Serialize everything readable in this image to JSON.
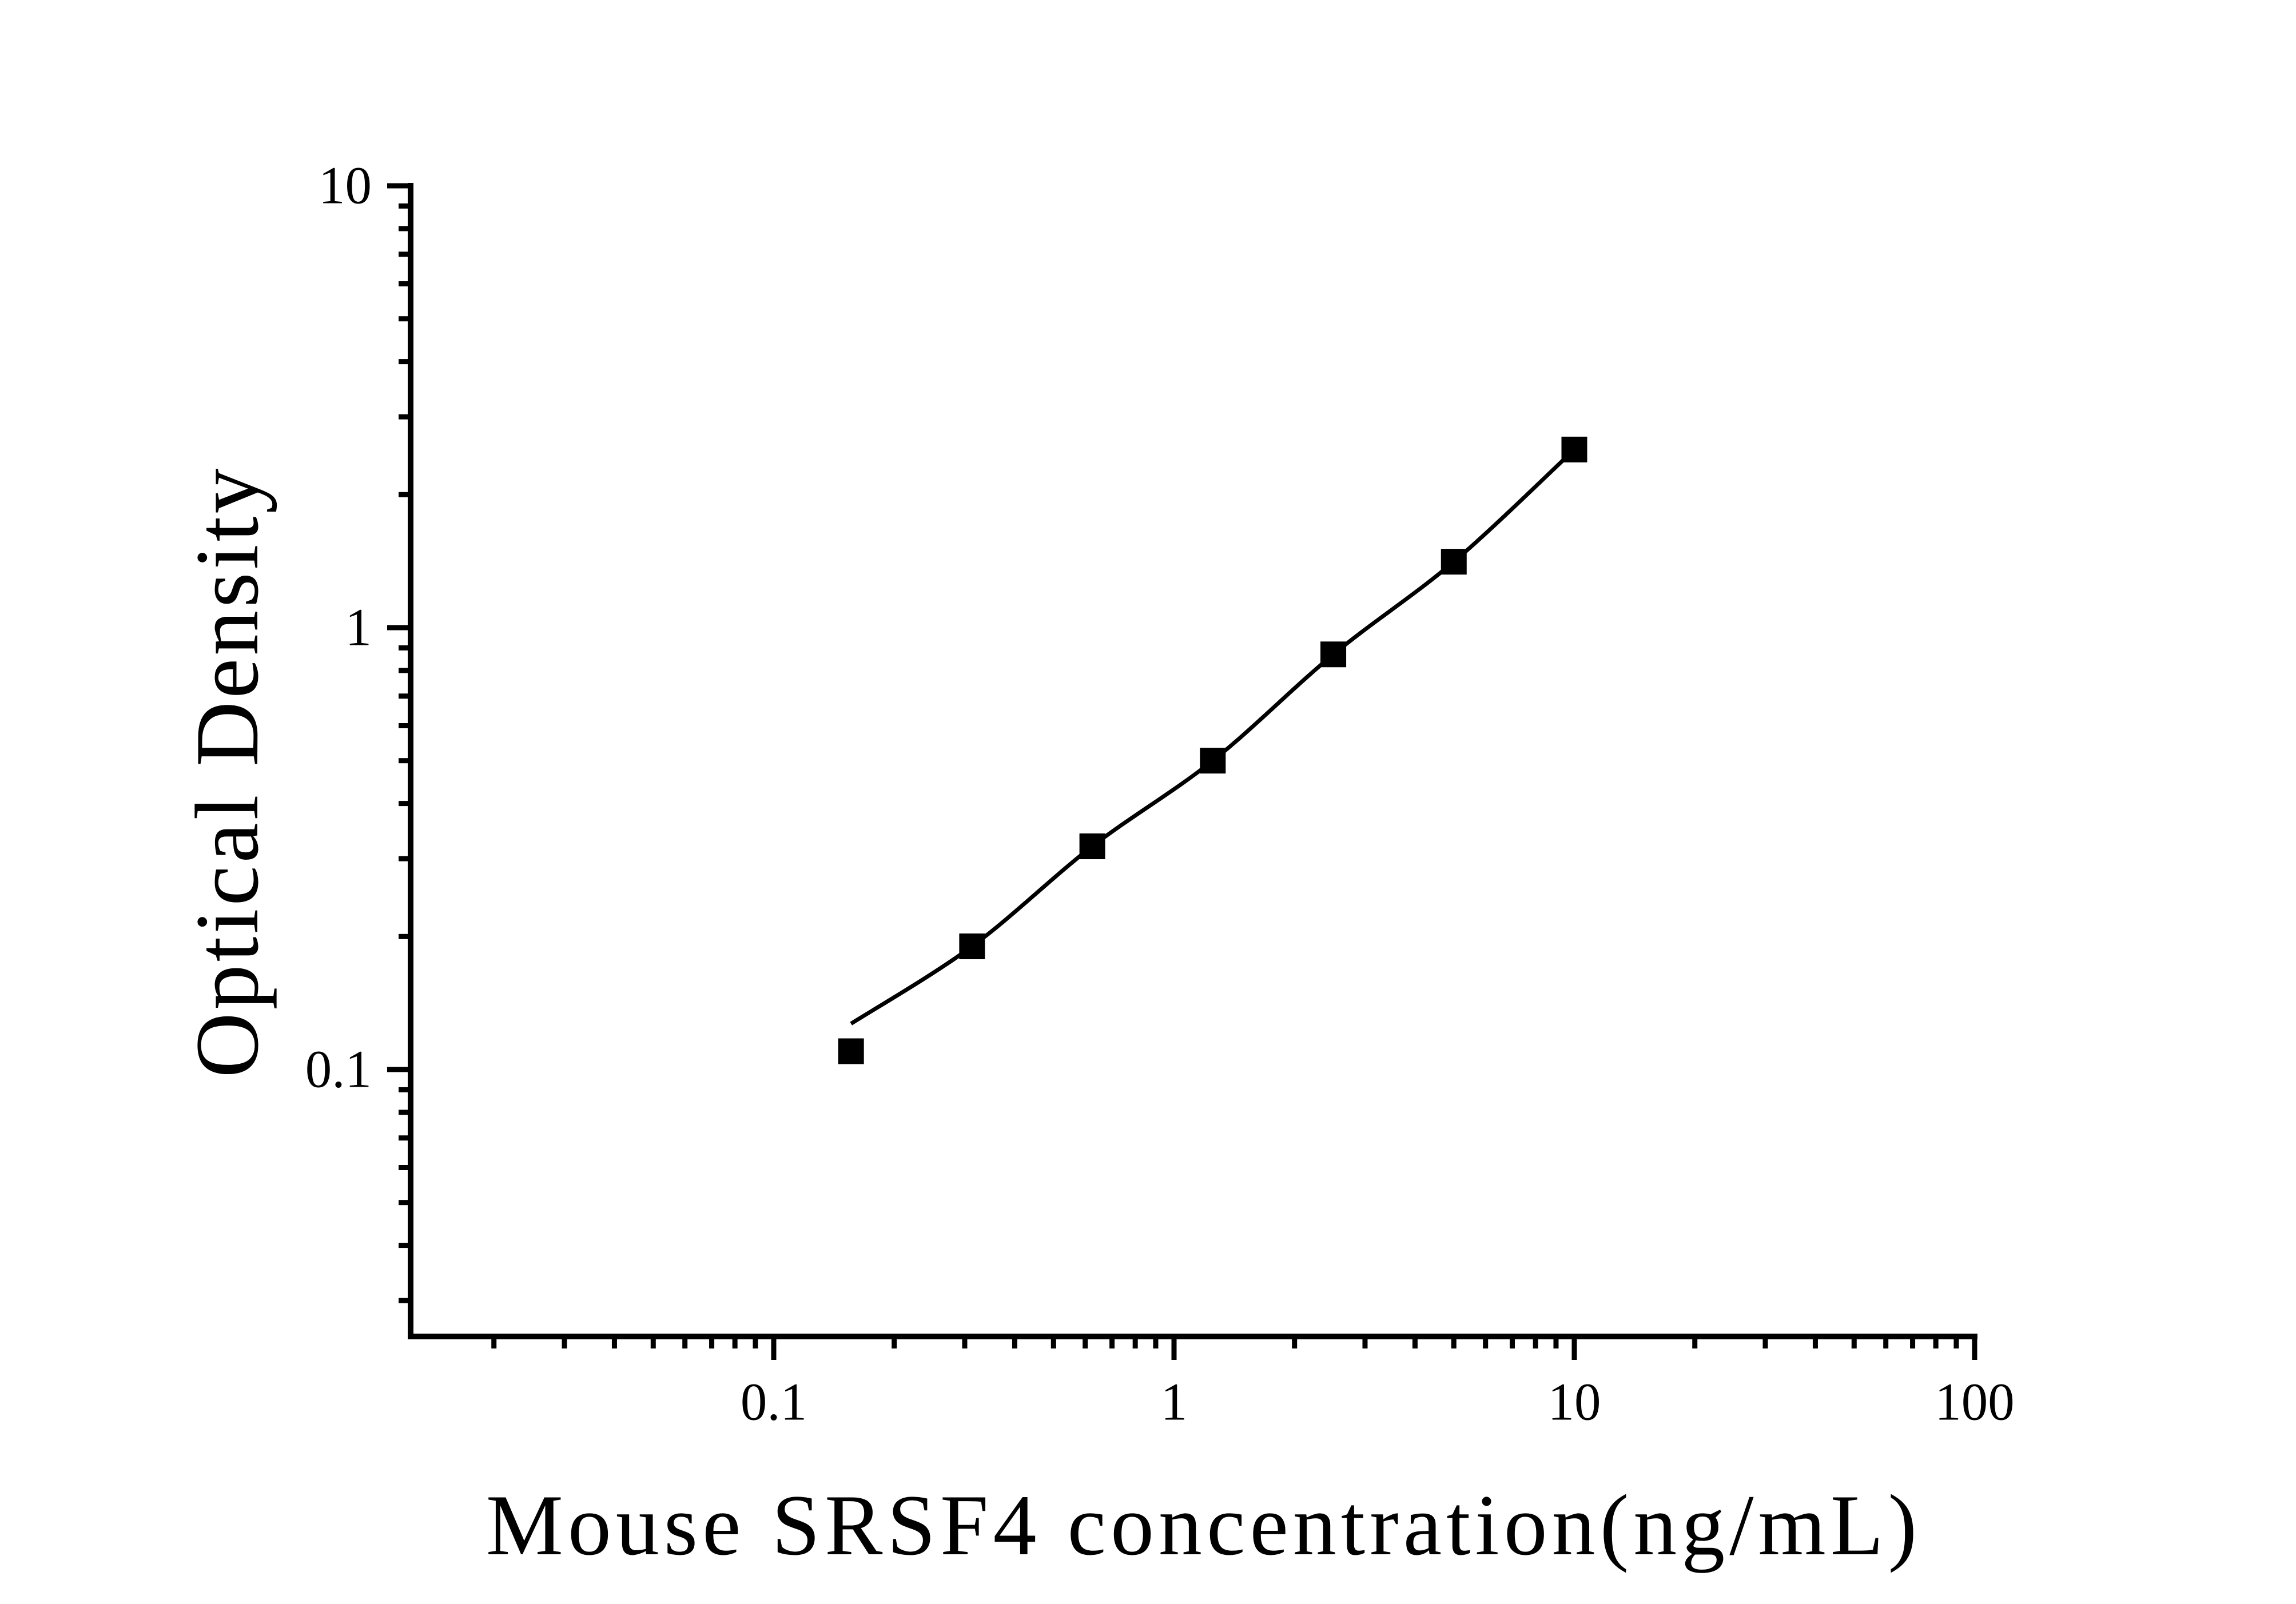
{
  "colors": {
    "foreground": "#000000",
    "background": "#ffffff",
    "marker_color": "#000000",
    "curve_color": "#000000"
  },
  "chart_data": {
    "type": "scatter",
    "title": "",
    "xlabel": "Mouse SRSF4 concentration(ng/mL)",
    "ylabel": "Optical Density",
    "x_scale": "log",
    "y_scale": "log",
    "grid": "off",
    "legend": "none",
    "x_range": [
      0.0125,
      100
    ],
    "y_range": [
      0.025,
      10
    ],
    "x_tick_labels": [
      "0.1",
      "1",
      "10",
      "100"
    ],
    "x_tick_values": [
      0.1,
      1,
      10,
      100
    ],
    "y_tick_labels": [
      "0.1",
      "1",
      "10"
    ],
    "y_tick_values": [
      0.1,
      1,
      10
    ],
    "series": [
      {
        "name": "standard-points",
        "marker": "square",
        "x": [
          0.156,
          0.313,
          0.625,
          1.25,
          2.5,
          5,
          10
        ],
        "y": [
          0.11,
          0.19,
          0.32,
          0.5,
          0.87,
          1.41,
          2.53
        ]
      }
    ],
    "fit_curve": {
      "name": "fitted-standard-curve",
      "x": [
        0.156,
        0.313,
        0.625,
        1.25,
        2.5,
        5,
        10
      ],
      "y": [
        0.127,
        0.19,
        0.32,
        0.5,
        0.87,
        1.41,
        2.53
      ]
    }
  }
}
